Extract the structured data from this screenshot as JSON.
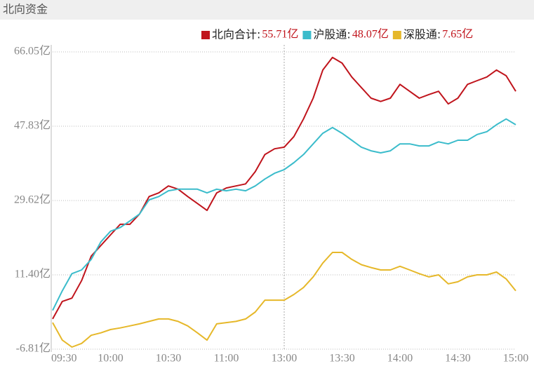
{
  "page_title": "北向资金",
  "chart_data": {
    "type": "line",
    "x": [
      0,
      5,
      10,
      15,
      20,
      25,
      30,
      35,
      40,
      45,
      50,
      55,
      60,
      65,
      70,
      75,
      80,
      85,
      90,
      95,
      100,
      105,
      110,
      115,
      120,
      125,
      130,
      135,
      140,
      145,
      150,
      155,
      160,
      165,
      170,
      175,
      180,
      185,
      190,
      195,
      200,
      205,
      210,
      215,
      220,
      225,
      230,
      235,
      240
    ],
    "xlim": [
      0,
      240
    ],
    "xticks": [
      {
        "value": 0,
        "label": "09:30"
      },
      {
        "value": 30,
        "label": "10:00"
      },
      {
        "value": 60,
        "label": "10:30"
      },
      {
        "value": 90,
        "label": "11:00"
      },
      {
        "value": 120,
        "label": "13:00"
      },
      {
        "value": 150,
        "label": "13:30"
      },
      {
        "value": 180,
        "label": "14:00"
      },
      {
        "value": 210,
        "label": "14:30"
      },
      {
        "value": 240,
        "label": "15:00"
      }
    ],
    "ylim": [
      -6.81,
      66.05
    ],
    "yticks": [
      {
        "value": -6.81,
        "label": "-6.81亿"
      },
      {
        "value": 11.4,
        "label": "11.40亿"
      },
      {
        "value": 29.62,
        "label": "29.62亿"
      },
      {
        "value": 47.83,
        "label": "47.83亿"
      },
      {
        "value": 66.05,
        "label": "66.05亿"
      }
    ],
    "grid": true,
    "series": [
      {
        "name": "北向合计:",
        "legend_value": "55.71亿",
        "color": "#c0141c",
        "values": [
          0.6,
          4.9,
          5.7,
          10.0,
          16.0,
          18.6,
          21.2,
          23.8,
          23.8,
          26.3,
          30.6,
          31.5,
          33.2,
          32.4,
          30.6,
          28.9,
          27.2,
          31.5,
          32.7,
          33.2,
          33.7,
          36.7,
          40.9,
          42.3,
          42.7,
          45.3,
          49.6,
          54.7,
          61.6,
          64.7,
          63.3,
          59.9,
          57.3,
          54.7,
          53.9,
          54.7,
          58.1,
          56.4,
          54.7,
          55.6,
          56.4,
          53.3,
          54.7,
          58.1,
          59.0,
          59.9,
          61.6,
          60.2,
          56.4
        ]
      },
      {
        "name": "沪股通:",
        "legend_value": "48.07亿",
        "color": "#3bbccb",
        "values": [
          2.7,
          7.5,
          11.7,
          12.6,
          15.2,
          19.5,
          22.1,
          23.0,
          24.6,
          26.3,
          29.8,
          30.6,
          32.0,
          32.4,
          32.4,
          32.4,
          31.5,
          32.4,
          32.0,
          32.4,
          32.0,
          33.2,
          34.9,
          36.3,
          37.2,
          38.9,
          40.9,
          43.5,
          46.1,
          47.5,
          46.1,
          44.4,
          42.7,
          41.8,
          41.3,
          41.8,
          43.5,
          43.5,
          43.0,
          43.0,
          44.0,
          43.5,
          44.4,
          44.4,
          45.8,
          46.5,
          48.2,
          49.6,
          48.2
        ]
      },
      {
        "name": "深股通:",
        "legend_value": "7.65亿",
        "color": "#e6b82a",
        "values": [
          -0.3,
          -4.6,
          -6.3,
          -5.4,
          -3.4,
          -2.8,
          -2.0,
          -1.6,
          -1.1,
          -0.6,
          0.0,
          0.6,
          0.6,
          0.0,
          -1.1,
          -2.8,
          -4.6,
          -0.6,
          -0.3,
          0.0,
          0.6,
          2.3,
          5.2,
          5.2,
          5.2,
          6.6,
          8.3,
          10.9,
          14.3,
          16.9,
          16.9,
          15.2,
          13.9,
          13.2,
          12.6,
          12.6,
          13.5,
          12.6,
          11.7,
          10.9,
          11.4,
          9.2,
          9.7,
          10.9,
          11.4,
          11.4,
          12.1,
          10.4,
          7.5
        ]
      }
    ]
  }
}
